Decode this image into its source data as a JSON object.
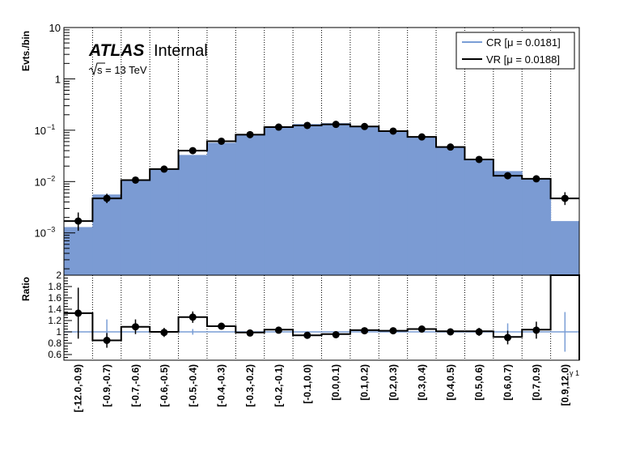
{
  "labels": {
    "atlas": "ATLAS",
    "internal": "Internal",
    "sqrt_s": "s = 13 TeV",
    "y_upper": "Evts./bin",
    "y_lower": "Ratio",
    "x_axis": "γ 1"
  },
  "colors": {
    "cr_fill": "#7b9bd3",
    "cr_line": "#7a9ed6",
    "vr": "#000000",
    "unity_line": "#7a9ed6",
    "grid": "#000000"
  },
  "chart_data": [
    {
      "type": "bar",
      "panel": "upper",
      "title": "",
      "ylabel": "Evts./bin",
      "yscale": "log",
      "ylim": [
        0.00015,
        10
      ],
      "y_tick_labels": [
        "10^-3",
        "10^-2",
        "10^-1",
        "1",
        "10"
      ],
      "grid": "vertical dotted",
      "legend_position": "top-right",
      "categories": [
        "[-12.0,-0.9)",
        "[-0.9,-0.7)",
        "[-0.7,-0.6)",
        "[-0.6,-0.5)",
        "[-0.5,-0.4)",
        "[-0.4,-0.3)",
        "[-0.3,-0.2)",
        "[-0.2,-0.1)",
        "[-0.1,0.0)",
        "[0.0,0.1)",
        "[0.1,0.2)",
        "[0.2,0.3)",
        "[0.3,0.4)",
        "[0.4,0.5)",
        "[0.5,0.6)",
        "[0.6,0.7)",
        "[0.7,0.9)",
        "[0.9,12.0)"
      ],
      "series": [
        {
          "name": "CR [μ = 0.0181]",
          "style": "filled histogram",
          "values": [
            0.0013,
            0.0056,
            0.0103,
            0.017,
            0.033,
            0.057,
            0.083,
            0.115,
            0.132,
            0.137,
            0.12,
            0.094,
            0.072,
            0.046,
            0.027,
            0.016,
            0.011,
            0.0017
          ]
        },
        {
          "name": "VR [μ = 0.0188]",
          "style": "line histogram with error-bar markers",
          "values": [
            0.0017,
            0.0047,
            0.0107,
            0.0175,
            0.04,
            0.061,
            0.082,
            0.115,
            0.124,
            0.13,
            0.118,
            0.096,
            0.074,
            0.047,
            0.027,
            0.013,
            0.0113,
            0.0047
          ],
          "err_low": [
            0.0006,
            0.0009,
            0.0012,
            0.0015,
            0.004,
            0.004,
            0.005,
            0.006,
            0.006,
            0.007,
            0.006,
            0.005,
            0.005,
            0.003,
            0.002,
            0.0015,
            0.0013,
            0.0012
          ],
          "err_high": [
            0.0008,
            0.0011,
            0.0014,
            0.0017,
            0.005,
            0.005,
            0.006,
            0.007,
            0.007,
            0.008,
            0.007,
            0.006,
            0.005,
            0.004,
            0.003,
            0.0018,
            0.0016,
            0.0015
          ]
        }
      ]
    },
    {
      "type": "line",
      "panel": "lower",
      "ylabel": "Ratio",
      "ylim": [
        0.5,
        2.0
      ],
      "y_tick_labels": [
        "0.6",
        "0.8",
        "1",
        "1.2",
        "1.4",
        "1.6",
        "1.8",
        "2"
      ],
      "categories": [
        "[-12.0,-0.9)",
        "[-0.9,-0.7)",
        "[-0.7,-0.6)",
        "[-0.6,-0.5)",
        "[-0.5,-0.4)",
        "[-0.4,-0.3)",
        "[-0.3,-0.2)",
        "[-0.2,-0.1)",
        "[-0.1,0.0)",
        "[0.0,0.1)",
        "[0.1,0.2)",
        "[0.2,0.3)",
        "[0.3,0.4)",
        "[0.4,0.5)",
        "[0.5,0.6)",
        "[0.6,0.7)",
        "[0.7,0.9)",
        "[0.9,12.0)"
      ],
      "series": [
        {
          "name": "VR",
          "style": "step histogram with error-bar markers",
          "values": [
            1.33,
            0.85,
            1.09,
            1.0,
            1.26,
            1.1,
            0.99,
            1.04,
            0.94,
            0.96,
            1.03,
            1.02,
            1.05,
            1.01,
            1.01,
            0.91,
            1.04,
            2.0
          ],
          "markers": [
            1.33,
            0.85,
            1.09,
            0.99,
            1.26,
            1.1,
            0.98,
            1.03,
            0.94,
            0.95,
            1.02,
            1.02,
            1.05,
            1.0,
            1.0,
            0.9,
            1.03,
            null
          ],
          "err": [
            0.45,
            0.13,
            0.13,
            0.08,
            0.1,
            0.05,
            0.04,
            0.03,
            0.04,
            0.04,
            0.03,
            0.03,
            0.03,
            0.05,
            0.07,
            0.12,
            0.15,
            null
          ]
        },
        {
          "name": "CR",
          "style": "unity line with error bars",
          "values": [
            1,
            1,
            1,
            1,
            1,
            1,
            1,
            1,
            1,
            1,
            1,
            1,
            1,
            1,
            1,
            1,
            1,
            1
          ],
          "err": [
            0,
            0.22,
            0,
            0,
            0.05,
            0,
            0,
            0,
            0,
            0,
            0,
            0,
            0,
            0,
            0,
            0.15,
            0,
            0.35
          ]
        }
      ]
    }
  ]
}
